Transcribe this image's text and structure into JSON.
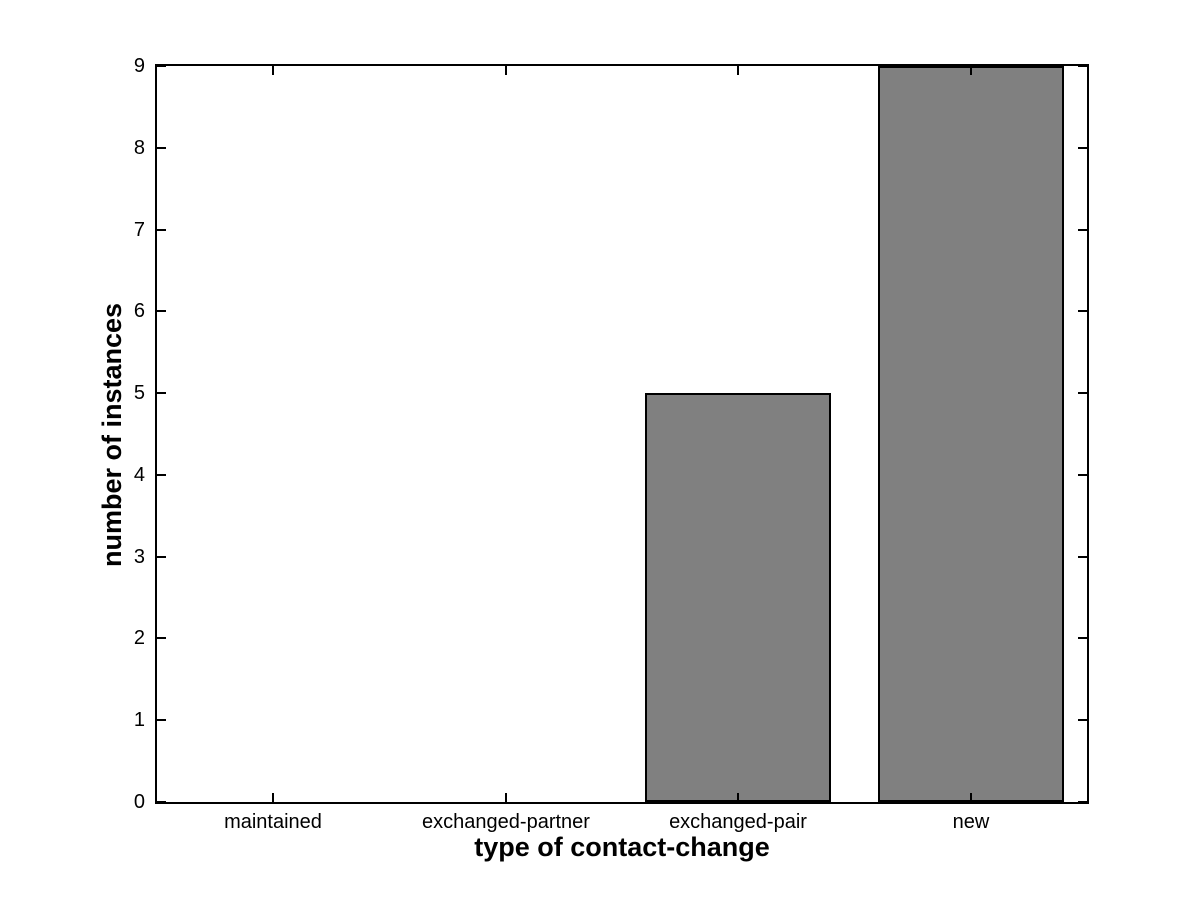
{
  "chart_data": {
    "type": "bar",
    "categories": [
      "maintained",
      "exchanged-partner",
      "exchanged-pair",
      "new"
    ],
    "values": [
      0,
      0,
      5,
      9
    ],
    "title": "",
    "xlabel": "type of contact-change",
    "ylabel": "number of instances",
    "ylim": [
      0,
      9
    ],
    "yticks": [
      0,
      1,
      2,
      3,
      4,
      5,
      6,
      7,
      8,
      9
    ],
    "bar_width_fraction": 0.8,
    "grid": false,
    "legend": null,
    "colors": {
      "bar_fill": "#808080",
      "bar_edge": "#000000",
      "axis": "#000000",
      "background": "#ffffff",
      "text": "#000000"
    }
  }
}
